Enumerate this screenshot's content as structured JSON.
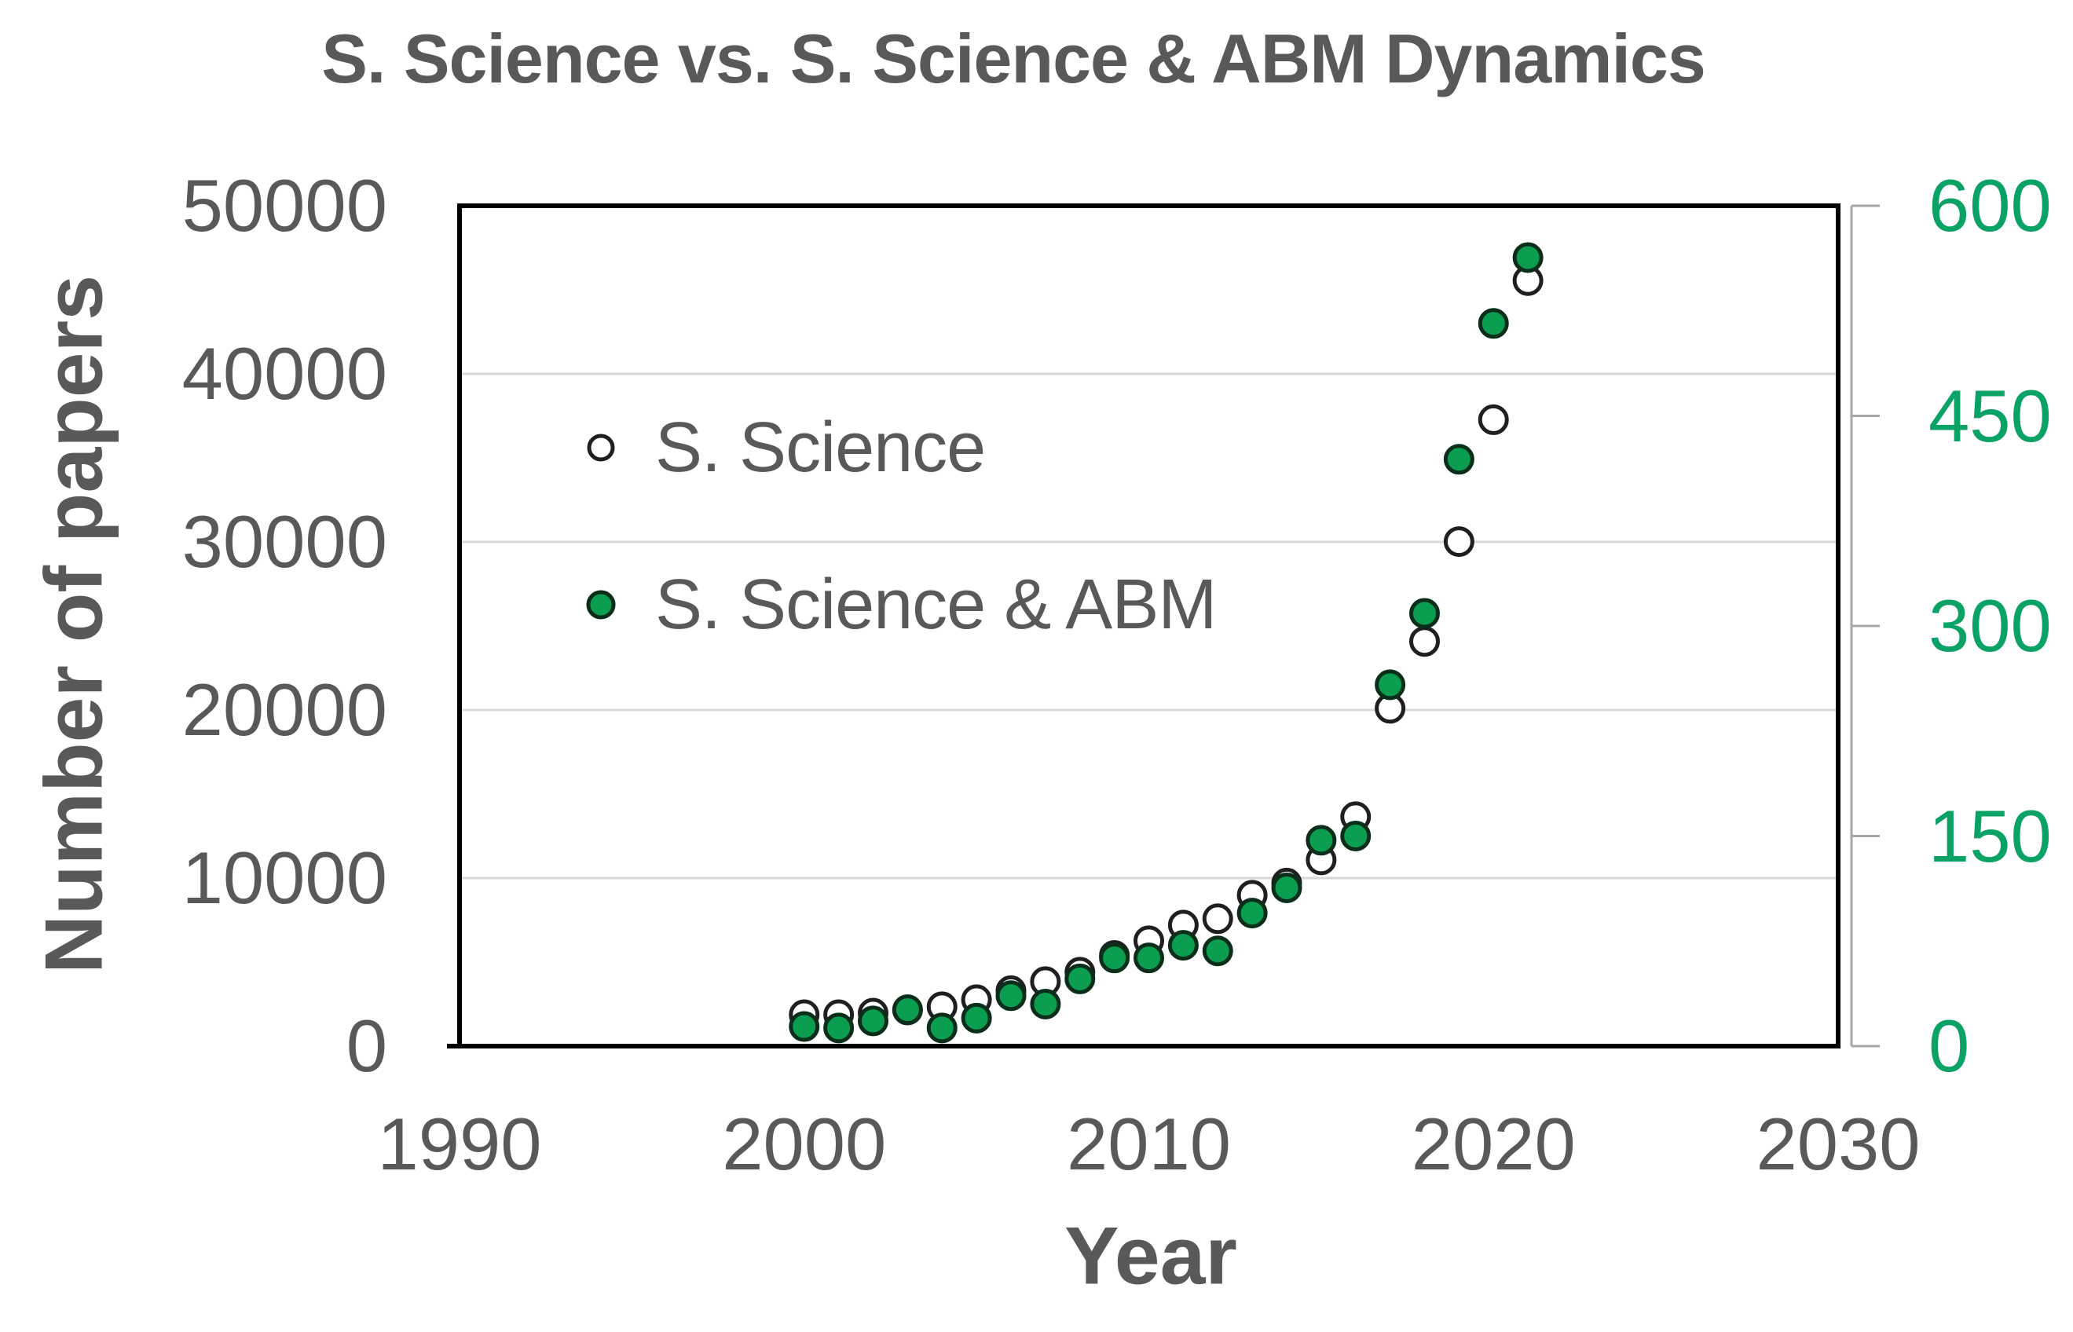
{
  "title": "S. Science vs. S. Science & ABM Dynamics",
  "legend": {
    "items": [
      {
        "label": "S. Science",
        "marker": "open-circle"
      },
      {
        "label": "S. Science & ABM",
        "marker": "filled-circle-green"
      }
    ]
  },
  "colors": {
    "text_gray": "#595959",
    "gridline": "#d9d9d9",
    "plot_border": "#000000",
    "secondary_axis_line": "#a6a6a6",
    "right_axis_text": "#0aa265",
    "green_marker_fill": "#0b9d50",
    "green_marker_stroke": "#0b2e1b",
    "open_marker_stroke": "#1f1f1f",
    "open_marker_fill": "#ffffff"
  },
  "chart_data": {
    "type": "scatter",
    "title": "S. Science vs. S. Science & ABM Dynamics",
    "xlabel": "Year",
    "ylabel_left": "Number of papers",
    "grid": "horizontal",
    "legend_position": "inside-upper-left",
    "x_axis": {
      "min": 1990,
      "max": 2030,
      "ticks": [
        1990,
        2000,
        2010,
        2020,
        2030
      ]
    },
    "y_axis_left": {
      "min": 0,
      "max": 50000,
      "ticks": [
        0,
        10000,
        20000,
        30000,
        40000,
        50000
      ],
      "tick_labels": [
        "0",
        "10000",
        "20000",
        "30000",
        "40000",
        "50000"
      ]
    },
    "y_axis_right": {
      "min": 0,
      "max": 600,
      "ticks": [
        0,
        150,
        300,
        450,
        600
      ],
      "tick_labels": [
        "0",
        "150",
        "300",
        "450",
        "600"
      ],
      "color": "#0aa265"
    },
    "x": [
      2000,
      2001,
      2002,
      2003,
      2004,
      2005,
      2006,
      2007,
      2008,
      2009,
      2010,
      2011,
      2012,
      2013,
      2014,
      2015,
      2016,
      2017,
      2018,
      2019,
      2020,
      2021
    ],
    "series": [
      {
        "name": "S. Science",
        "axis": "left",
        "marker": "open-circle",
        "values": [
          1870,
          1870,
          1960,
          2150,
          2340,
          2760,
          3300,
          3840,
          4400,
          5400,
          6270,
          7200,
          7580,
          8980,
          9700,
          11080,
          13650,
          20100,
          24080,
          30020,
          37270,
          45550
        ]
      },
      {
        "name": "S. Science & ABM",
        "axis": "right",
        "marker": "filled-circle",
        "values": [
          14,
          13,
          18,
          26,
          13,
          20,
          36,
          30,
          48,
          63,
          63,
          72,
          68,
          95,
          113,
          147,
          150,
          258,
          309,
          419,
          516,
          563
        ]
      }
    ]
  }
}
